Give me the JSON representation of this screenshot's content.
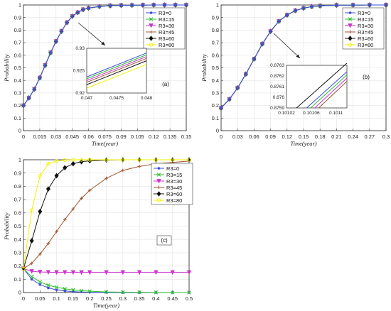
{
  "colors": {
    "R3=0": "#3b4bdc",
    "R3=15": "#2fbf2f",
    "R3=30": "#cc33cc",
    "R3=45": "#a0522d",
    "R3=60": "#111111",
    "R3=80": "#f2f200"
  },
  "chart_data": [
    {
      "type": "line",
      "panel_label": "(a)",
      "xlabel": "Time(year)",
      "ylabel": "Probability",
      "xlim": [
        0,
        0.15
      ],
      "ylim": [
        0,
        1
      ],
      "x_ticks": [
        "0",
        "0.015",
        "0.03",
        "0.045",
        "0.06",
        "0.075",
        "0.09",
        "0.105",
        "0.12",
        "0.135",
        "0.15"
      ],
      "y_ticks": [
        "0",
        "0.1",
        "0.2",
        "0.3",
        "0.4",
        "0.5",
        "0.6",
        "0.7",
        "0.8",
        "0.9",
        "1"
      ],
      "legend": [
        "R3=0",
        "R3=15",
        "R3=30",
        "R3=45",
        "R3=60",
        "R3=80"
      ],
      "legend_position": "top-right",
      "grid": true,
      "x": [
        0,
        0.005,
        0.01,
        0.015,
        0.02,
        0.025,
        0.03,
        0.035,
        0.04,
        0.045,
        0.05,
        0.055,
        0.06,
        0.07,
        0.08,
        0.09,
        0.1,
        0.11,
        0.12,
        0.13,
        0.14,
        0.15
      ],
      "series_values": [
        0.2,
        0.26,
        0.33,
        0.42,
        0.52,
        0.62,
        0.71,
        0.79,
        0.86,
        0.91,
        0.94,
        0.963,
        0.975,
        0.988,
        0.994,
        0.997,
        0.998,
        0.999,
        1.0,
        1.0,
        1.0,
        1.0
      ],
      "inset": {
        "xlim": [
          0.047,
          0.048
        ],
        "ylim": [
          0.92,
          0.935
        ],
        "x_ticks": [
          "0.047",
          "0.0475",
          "0.048"
        ],
        "y_ticks": [
          "0.92",
          "0.925",
          "0.93"
        ],
        "series": [
          {
            "name": "R3=0",
            "y0": 0.9254,
            "y1": 0.9334
          },
          {
            "name": "R3=15",
            "y0": 0.9248,
            "y1": 0.9328
          },
          {
            "name": "R3=30",
            "y0": 0.9242,
            "y1": 0.9322
          },
          {
            "name": "R3=45",
            "y0": 0.9236,
            "y1": 0.9316
          },
          {
            "name": "R3=60",
            "y0": 0.9228,
            "y1": 0.9308
          },
          {
            "name": "R3=80",
            "y0": 0.9216,
            "y1": 0.9296
          }
        ]
      }
    },
    {
      "type": "line",
      "panel_label": "(b)",
      "xlabel": "Time(year)",
      "ylabel": "Probability",
      "xlim": [
        0,
        0.3
      ],
      "ylim": [
        0,
        1
      ],
      "x_ticks": [
        "0",
        "0.03",
        "0.06",
        "0.09",
        "0.12",
        "0.15",
        "0.18",
        "0.21",
        "0.24",
        "0.27",
        "0.3"
      ],
      "y_ticks": [
        "0",
        "0.1",
        "0.2",
        "0.3",
        "0.4",
        "0.5",
        "0.6",
        "0.7",
        "0.8",
        "0.9",
        "1"
      ],
      "legend": [
        "R3=0",
        "R3=15",
        "R3=30",
        "R3=45",
        "R3=60",
        "R3=80"
      ],
      "legend_position": "top-right",
      "grid": true,
      "x": [
        0,
        0.015,
        0.03,
        0.045,
        0.06,
        0.075,
        0.09,
        0.105,
        0.12,
        0.135,
        0.15,
        0.165,
        0.18,
        0.21,
        0.24,
        0.27,
        0.3
      ],
      "series_values": [
        0.18,
        0.25,
        0.34,
        0.45,
        0.57,
        0.69,
        0.79,
        0.87,
        0.92,
        0.955,
        0.975,
        0.987,
        0.993,
        0.998,
        0.999,
        1.0,
        1.0
      ],
      "inset": {
        "xlim": [
          0.10102,
          0.10114
        ],
        "ylim": [
          0.8759,
          0.8763
        ],
        "x_ticks": [
          "0.10102",
          "0.10106",
          "0.1011"
        ],
        "y_ticks": [
          "0.8759",
          "0.876",
          "0.8761",
          "0.8762",
          "0.8763"
        ],
        "series": [
          {
            "name": "R3=60",
            "x0": 0.10104,
            "y0": 0.8759,
            "x1": 0.10114,
            "y1": 0.87632
          },
          {
            "name": "R3=0",
            "x0": 0.10106,
            "y0": 0.8759,
            "x1": 0.10114,
            "y1": 0.87624
          },
          {
            "name": "R3=15",
            "x0": 0.101068,
            "y0": 0.8759,
            "x1": 0.10114,
            "y1": 0.87621
          },
          {
            "name": "R3=30",
            "x0": 0.101076,
            "y0": 0.8759,
            "x1": 0.10114,
            "y1": 0.87618
          },
          {
            "name": "R3=45",
            "x0": 0.101084,
            "y0": 0.8759,
            "x1": 0.10114,
            "y1": 0.87615
          }
        ]
      }
    },
    {
      "type": "line",
      "panel_label": "(c)",
      "xlabel": "Time(year)",
      "ylabel": "Probability",
      "xlim": [
        0,
        0.5
      ],
      "ylim": [
        0,
        1
      ],
      "x_ticks": [
        "0",
        "0.05",
        "0.1",
        "0.15",
        "0.2",
        "0.25",
        "0.3",
        "0.35",
        "0.4",
        "0.45",
        "0.5"
      ],
      "y_ticks": [
        "0",
        "0.1",
        "0.2",
        "0.3",
        "0.4",
        "0.5",
        "0.6",
        "0.7",
        "0.8",
        "0.9",
        "1"
      ],
      "legend": [
        "R3=0",
        "R3=15",
        "R3=30",
        "R3=45",
        "R3=60",
        "R3=80"
      ],
      "legend_position": "top-right",
      "grid": true,
      "x": [
        0,
        0.025,
        0.05,
        0.075,
        0.1,
        0.125,
        0.15,
        0.175,
        0.2,
        0.25,
        0.3,
        0.35,
        0.4,
        0.45,
        0.5
      ],
      "series": [
        {
          "name": "R3=0",
          "values": [
            0.18,
            0.1,
            0.06,
            0.035,
            0.02,
            0.012,
            0.007,
            0.004,
            0.002,
            0.001,
            0.0,
            0.0,
            0.0,
            0.0,
            0.0
          ]
        },
        {
          "name": "R3=15",
          "values": [
            0.18,
            0.12,
            0.08,
            0.055,
            0.04,
            0.028,
            0.02,
            0.014,
            0.01,
            0.005,
            0.003,
            0.002,
            0.001,
            0.0,
            0.0
          ]
        },
        {
          "name": "R3=30",
          "values": [
            0.18,
            0.16,
            0.155,
            0.153,
            0.152,
            0.152,
            0.152,
            0.152,
            0.152,
            0.152,
            0.152,
            0.152,
            0.152,
            0.152,
            0.152
          ]
        },
        {
          "name": "R3=45",
          "values": [
            0.18,
            0.22,
            0.29,
            0.37,
            0.46,
            0.55,
            0.63,
            0.71,
            0.77,
            0.86,
            0.92,
            0.95,
            0.97,
            0.98,
            0.99
          ]
        },
        {
          "name": "R3=60",
          "values": [
            0.18,
            0.39,
            0.61,
            0.78,
            0.88,
            0.94,
            0.97,
            0.985,
            0.992,
            0.998,
            1.0,
            1.0,
            1.0,
            1.0,
            1.0
          ]
        },
        {
          "name": "R3=80",
          "values": [
            0.18,
            0.62,
            0.88,
            0.97,
            0.99,
            0.998,
            1.0,
            1.0,
            1.0,
            1.0,
            1.0,
            1.0,
            1.0,
            1.0,
            1.0
          ]
        }
      ]
    }
  ]
}
